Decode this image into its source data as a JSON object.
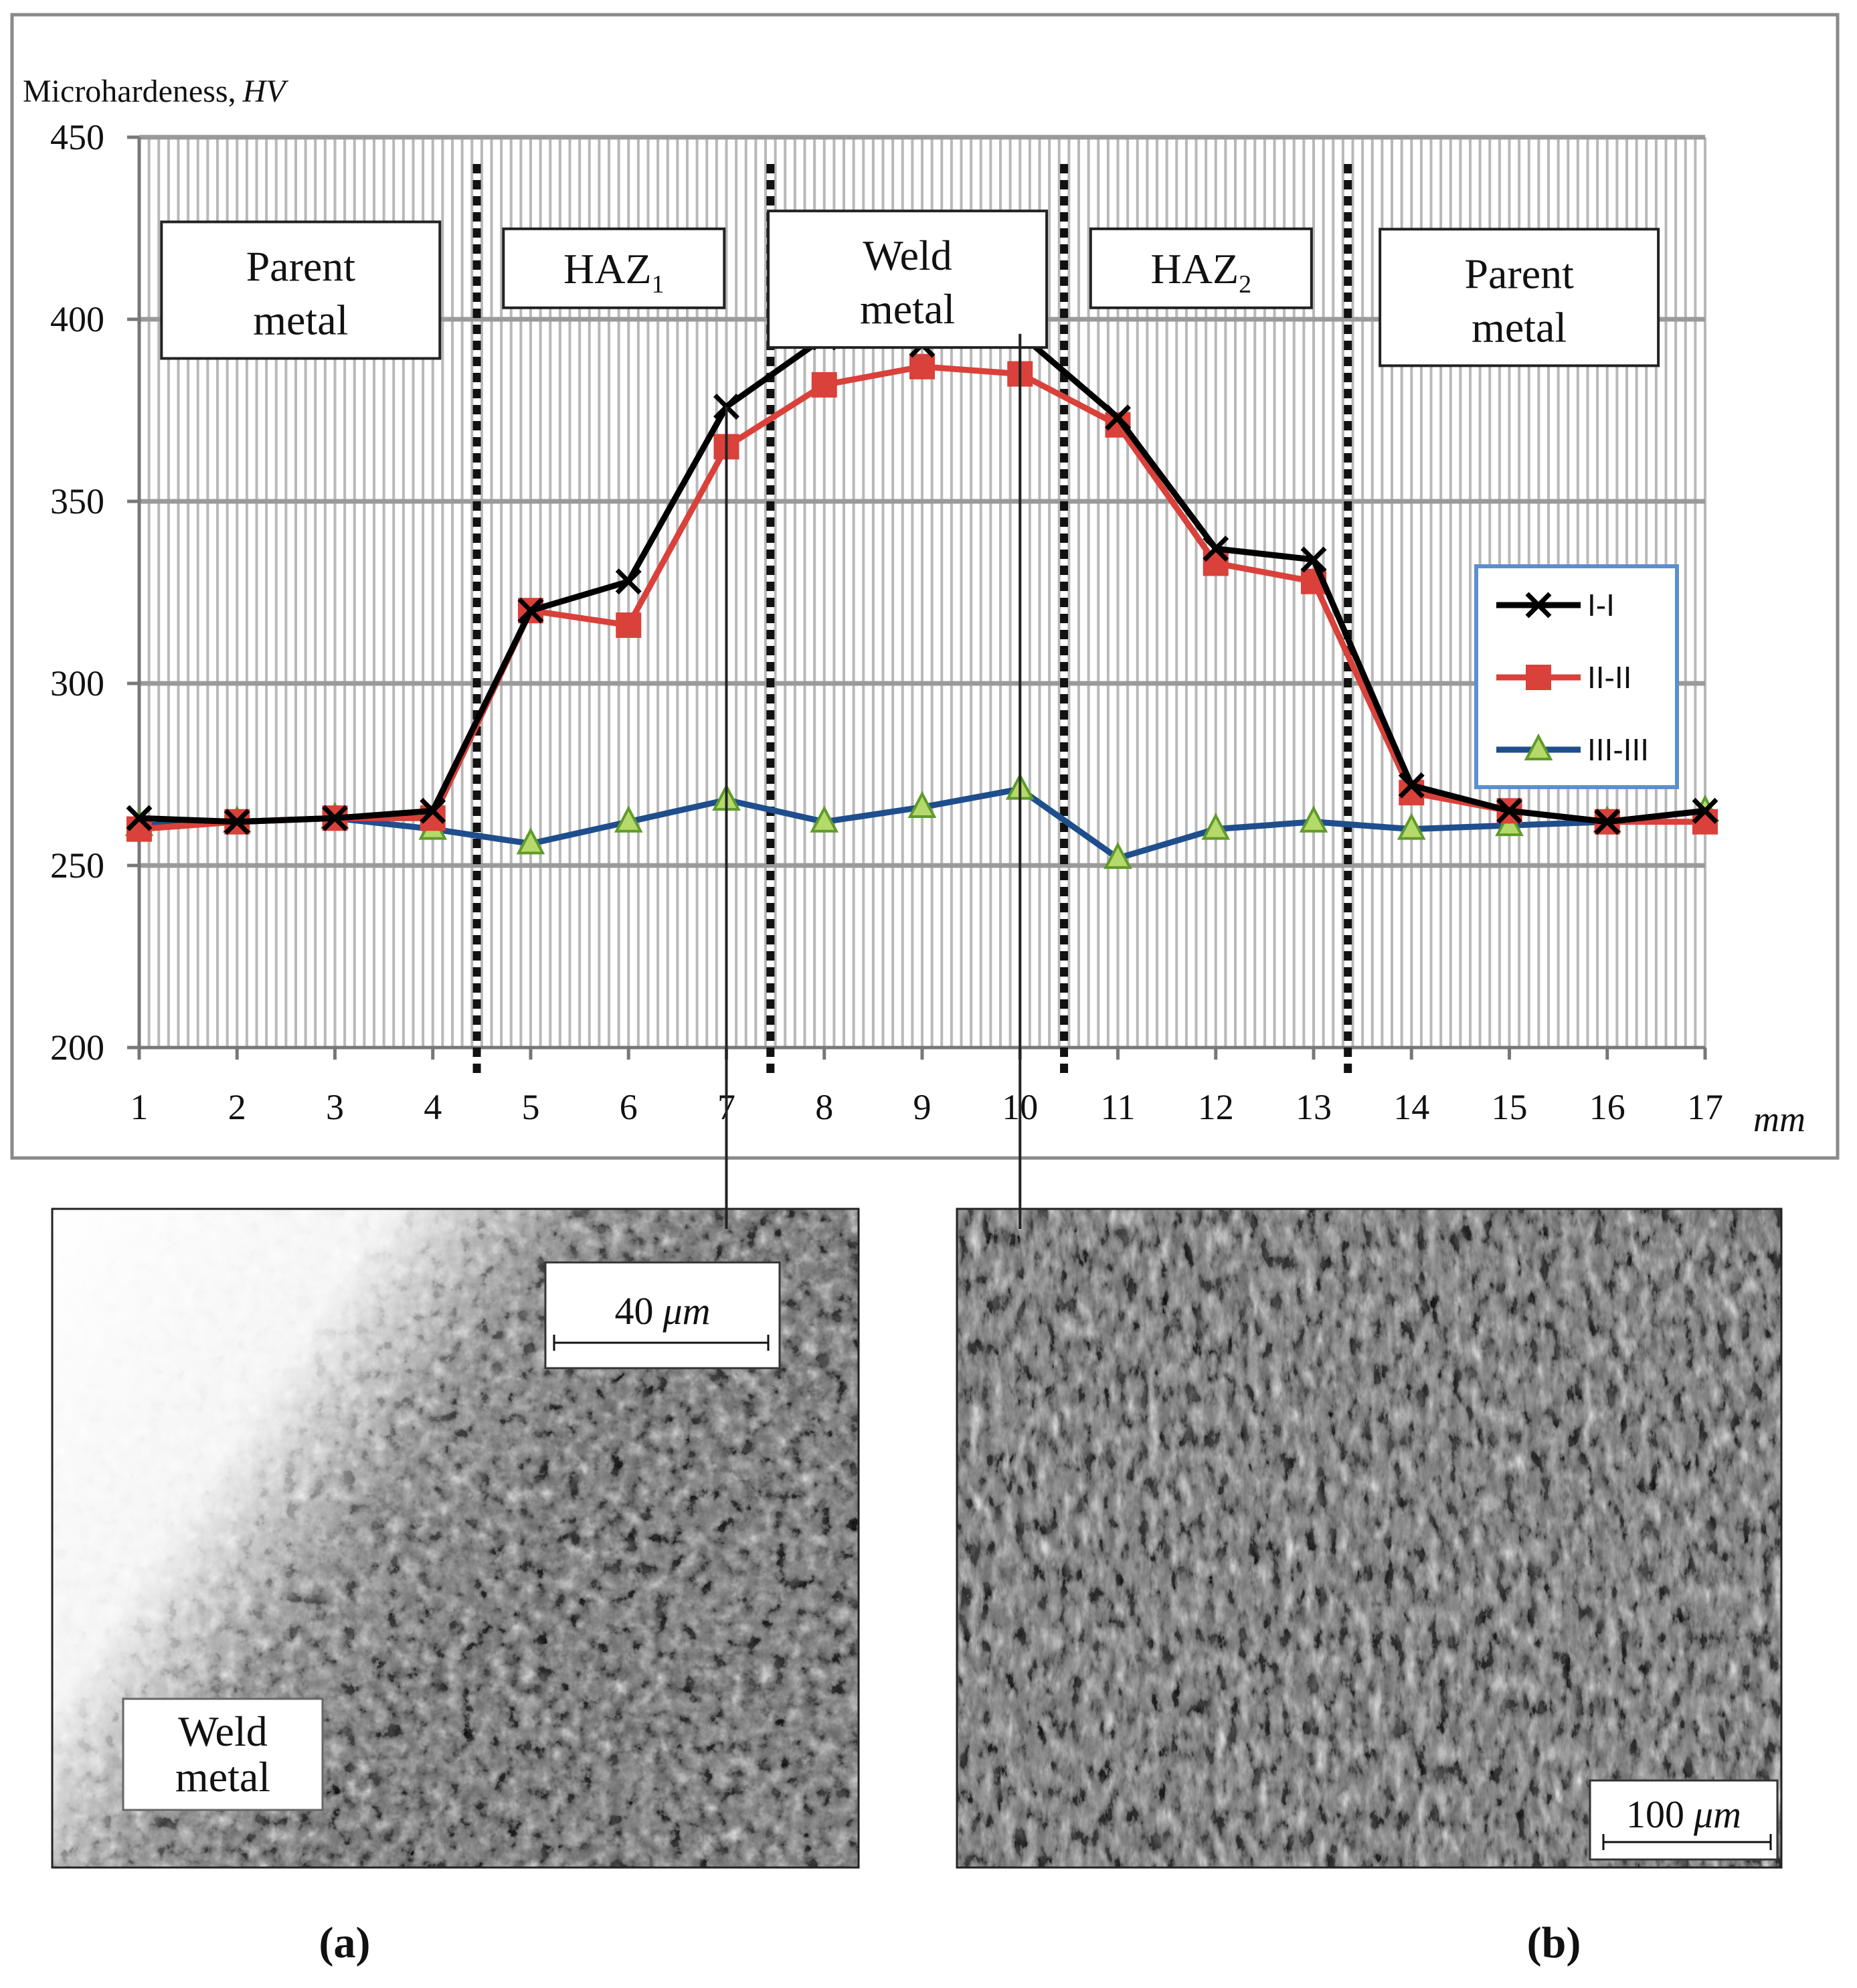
{
  "chart_data": {
    "type": "line",
    "ylabel": "Microhardeness,",
    "ylabel_italic": "HV",
    "xunit": "mm",
    "x": [
      1,
      2,
      3,
      4,
      5,
      6,
      7,
      8,
      9,
      10,
      11,
      12,
      13,
      14,
      15,
      16,
      17
    ],
    "ylim": [
      200,
      450
    ],
    "yticks": [
      200,
      250,
      300,
      350,
      400,
      450
    ],
    "grid": true,
    "legend_position": "right",
    "series": [
      {
        "name": "I-I",
        "color": "#000000",
        "marker": "x",
        "values": [
          263,
          262,
          263,
          265,
          320,
          328,
          376,
          395,
          393,
          396,
          373,
          337,
          334,
          272,
          265,
          262,
          265
        ]
      },
      {
        "name": "II-II",
        "color": "#d9413a",
        "marker": "square",
        "values": [
          260,
          262,
          263,
          263,
          320,
          316,
          365,
          382,
          387,
          385,
          371,
          333,
          328,
          270,
          265,
          262,
          262
        ]
      },
      {
        "name": "III-III",
        "color": "#1f4e8c",
        "marker": "triangle",
        "values": [
          261,
          262,
          263,
          260,
          256,
          262,
          268,
          262,
          266,
          271,
          252,
          260,
          262,
          260,
          261,
          262,
          265
        ]
      }
    ],
    "zone_boundaries": [
      4.45,
      7.45,
      10.45,
      13.35
    ],
    "zones": [
      {
        "line1": "Parent",
        "line2": "metal",
        "x": 2.65,
        "y": 408
      },
      {
        "line1": "HAZ",
        "sub": "1",
        "x": 5.85,
        "y": 414
      },
      {
        "line1": "Weld",
        "line2": "metal",
        "x": 8.85,
        "y": 411
      },
      {
        "line1": "HAZ",
        "sub": "2",
        "x": 11.85,
        "y": 414
      },
      {
        "line1": "Parent",
        "line2": "metal",
        "x": 15.1,
        "y": 406
      }
    ]
  },
  "micrographs": {
    "a": {
      "label": "(a)",
      "scale": "40",
      "scale_unit": "μm",
      "inset_line1": "Weld",
      "inset_line2": "metal",
      "pointer_x": 7
    },
    "b": {
      "label": "(b)",
      "scale": "100",
      "scale_unit": "μm",
      "pointer_x": 10
    }
  }
}
